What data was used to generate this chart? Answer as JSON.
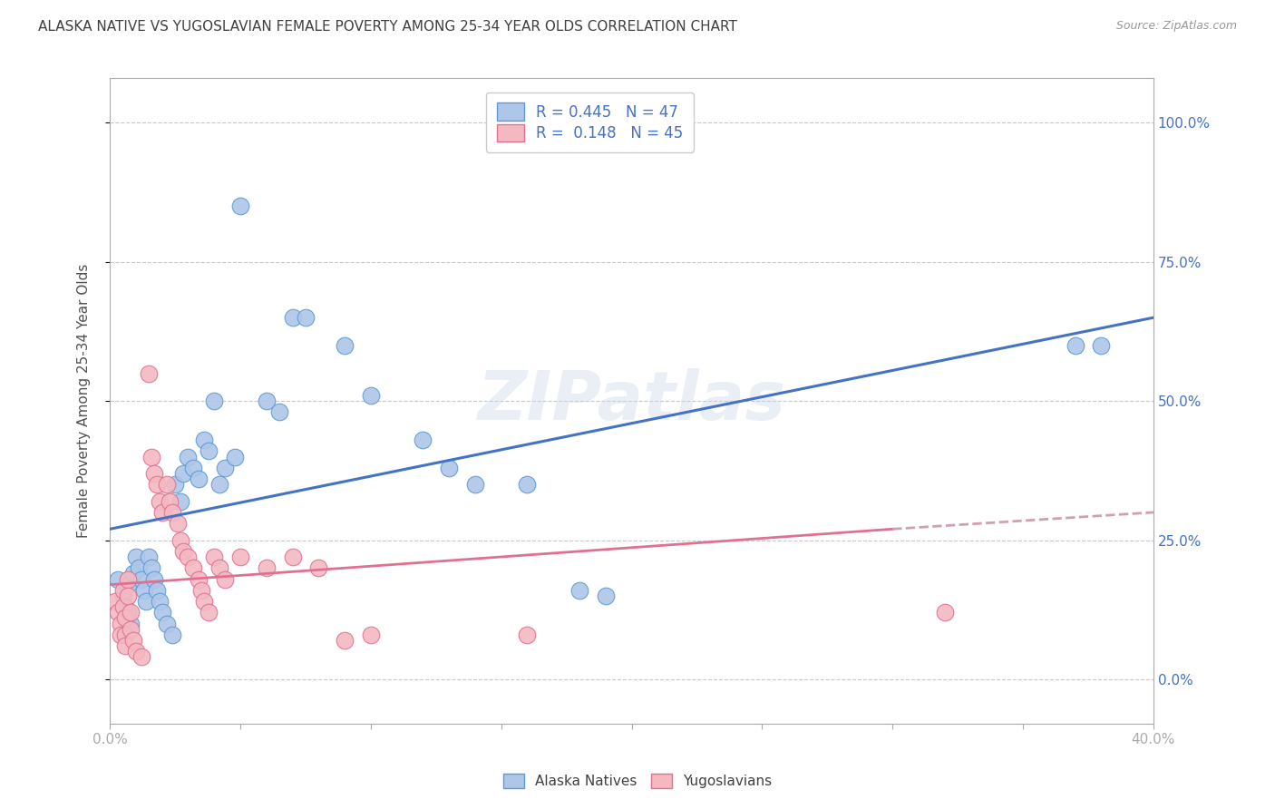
{
  "title": "ALASKA NATIVE VS YUGOSLAVIAN FEMALE POVERTY AMONG 25-34 YEAR OLDS CORRELATION CHART",
  "source": "Source: ZipAtlas.com",
  "ylabel": "Female Poverty Among 25-34 Year Olds",
  "ytick_labels": [
    "0.0%",
    "25.0%",
    "50.0%",
    "75.0%",
    "100.0%"
  ],
  "ytick_values": [
    0.0,
    0.25,
    0.5,
    0.75,
    1.0
  ],
  "xmin": 0.0,
  "xmax": 0.4,
  "ymin": -0.08,
  "ymax": 1.08,
  "watermark": "ZIPatlas",
  "alaska_color": "#aec6e8",
  "alaska_edge": "#5b9bd5",
  "yugo_color": "#f4b8c1",
  "yugo_edge": "#e07090",
  "trend_alaska_color": "#4472c4",
  "trend_yugo_color": "#e07090",
  "trend_yugo_dashed_color": "#d0a0b0",
  "title_color": "#404040",
  "axis_color": "#aaaaaa",
  "grid_color": "#c8c8c8",
  "tick_color": "#4472c4",
  "alaska_R": "0.445",
  "alaska_N": "47",
  "yugo_R": "0.148",
  "yugo_N": "45",
  "alaska_points": [
    [
      0.003,
      0.18
    ],
    [
      0.005,
      0.15
    ],
    [
      0.006,
      0.13
    ],
    [
      0.007,
      0.17
    ],
    [
      0.007,
      0.12
    ],
    [
      0.008,
      0.1
    ],
    [
      0.009,
      0.19
    ],
    [
      0.01,
      0.22
    ],
    [
      0.011,
      0.2
    ],
    [
      0.012,
      0.18
    ],
    [
      0.013,
      0.16
    ],
    [
      0.014,
      0.14
    ],
    [
      0.015,
      0.22
    ],
    [
      0.016,
      0.2
    ],
    [
      0.017,
      0.18
    ],
    [
      0.018,
      0.16
    ],
    [
      0.019,
      0.14
    ],
    [
      0.02,
      0.12
    ],
    [
      0.022,
      0.1
    ],
    [
      0.024,
      0.08
    ],
    [
      0.025,
      0.35
    ],
    [
      0.027,
      0.32
    ],
    [
      0.028,
      0.37
    ],
    [
      0.03,
      0.4
    ],
    [
      0.032,
      0.38
    ],
    [
      0.034,
      0.36
    ],
    [
      0.036,
      0.43
    ],
    [
      0.038,
      0.41
    ],
    [
      0.04,
      0.5
    ],
    [
      0.042,
      0.35
    ],
    [
      0.044,
      0.38
    ],
    [
      0.048,
      0.4
    ],
    [
      0.05,
      0.85
    ],
    [
      0.06,
      0.5
    ],
    [
      0.065,
      0.48
    ],
    [
      0.07,
      0.65
    ],
    [
      0.075,
      0.65
    ],
    [
      0.09,
      0.6
    ],
    [
      0.1,
      0.51
    ],
    [
      0.12,
      0.43
    ],
    [
      0.13,
      0.38
    ],
    [
      0.14,
      0.35
    ],
    [
      0.16,
      0.35
    ],
    [
      0.18,
      0.16
    ],
    [
      0.19,
      0.15
    ],
    [
      0.37,
      0.6
    ],
    [
      0.38,
      0.6
    ]
  ],
  "yugo_points": [
    [
      0.002,
      0.14
    ],
    [
      0.003,
      0.12
    ],
    [
      0.004,
      0.1
    ],
    [
      0.004,
      0.08
    ],
    [
      0.005,
      0.16
    ],
    [
      0.005,
      0.13
    ],
    [
      0.006,
      0.11
    ],
    [
      0.006,
      0.08
    ],
    [
      0.006,
      0.06
    ],
    [
      0.007,
      0.18
    ],
    [
      0.007,
      0.15
    ],
    [
      0.008,
      0.12
    ],
    [
      0.008,
      0.09
    ],
    [
      0.009,
      0.07
    ],
    [
      0.01,
      0.05
    ],
    [
      0.012,
      0.04
    ],
    [
      0.015,
      0.55
    ],
    [
      0.016,
      0.4
    ],
    [
      0.017,
      0.37
    ],
    [
      0.018,
      0.35
    ],
    [
      0.019,
      0.32
    ],
    [
      0.02,
      0.3
    ],
    [
      0.022,
      0.35
    ],
    [
      0.023,
      0.32
    ],
    [
      0.024,
      0.3
    ],
    [
      0.026,
      0.28
    ],
    [
      0.027,
      0.25
    ],
    [
      0.028,
      0.23
    ],
    [
      0.03,
      0.22
    ],
    [
      0.032,
      0.2
    ],
    [
      0.034,
      0.18
    ],
    [
      0.035,
      0.16
    ],
    [
      0.036,
      0.14
    ],
    [
      0.038,
      0.12
    ],
    [
      0.04,
      0.22
    ],
    [
      0.042,
      0.2
    ],
    [
      0.044,
      0.18
    ],
    [
      0.05,
      0.22
    ],
    [
      0.06,
      0.2
    ],
    [
      0.07,
      0.22
    ],
    [
      0.08,
      0.2
    ],
    [
      0.09,
      0.07
    ],
    [
      0.1,
      0.08
    ],
    [
      0.16,
      0.08
    ],
    [
      0.32,
      0.12
    ]
  ]
}
